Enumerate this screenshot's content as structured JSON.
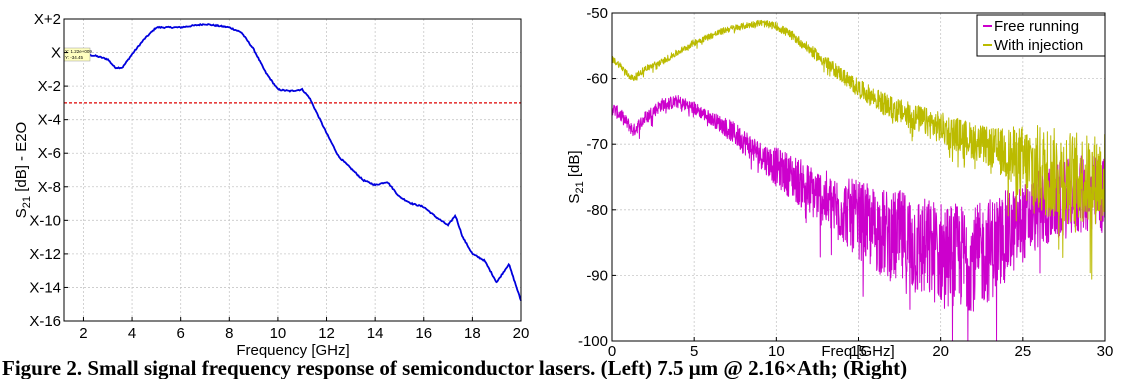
{
  "caption": "Figure 2. Small signal frequency response of semiconductor lasers. (Left) 7.5 μm @ 2.16×Ath; (Right)",
  "charts": [
    {
      "ylabel_main": "S",
      "ylabel_sub": "21",
      "ylabel_rest": " [dB] - E2O",
      "xlabel": "Frequency [GHz]",
      "datatip_line1": "X: 1.22e+009",
      "datatip_line2": "Y: -34.45"
    },
    {
      "ylabel_main": "S",
      "ylabel_sub": "21",
      "ylabel_rest": " [dB]",
      "xlabel": "Freq [GHz]",
      "legend": [
        "Free running",
        "With injection"
      ]
    }
  ],
  "chart_data": [
    {
      "type": "line",
      "xlabel": "Frequency [GHz]",
      "ylabel": "S21 [dB] - E2O",
      "xlim": [
        1.2,
        20
      ],
      "ylim": [
        -16,
        2
      ],
      "x_ticks": [
        2,
        4,
        6,
        8,
        10,
        12,
        14,
        16,
        18,
        20
      ],
      "y_ticks": [
        2,
        0,
        -2,
        -4,
        -6,
        -8,
        -10,
        -12,
        -14,
        -16
      ],
      "y_tick_labels": [
        "X+2",
        "X",
        "X-2",
        "X-4",
        "X-6",
        "X-8",
        "X-10",
        "X-12",
        "X-14",
        "X-16"
      ],
      "grid": true,
      "reference_line_y": -3,
      "series": [
        {
          "color": "#0000dd",
          "x": [
            1.2,
            1.5,
            2.0,
            2.5,
            3.0,
            3.3,
            3.6,
            4.0,
            4.5,
            5.0,
            5.5,
            6.0,
            6.5,
            7.0,
            7.5,
            8.0,
            8.5,
            9.0,
            9.5,
            10.0,
            10.5,
            11.0,
            11.3,
            11.5,
            12.0,
            12.5,
            13.0,
            13.5,
            14.0,
            14.5,
            15.0,
            15.5,
            16.0,
            16.5,
            17.0,
            17.3,
            17.6,
            18.0,
            18.5,
            19.0,
            19.5,
            20.0
          ],
          "y": [
            0,
            0,
            -0.1,
            -0.2,
            -0.4,
            -0.9,
            -0.9,
            -0.1,
            0.8,
            1.5,
            1.5,
            1.5,
            1.6,
            1.7,
            1.6,
            1.5,
            1.2,
            0.2,
            -1.2,
            -2.2,
            -2.3,
            -2.2,
            -2.7,
            -3.3,
            -4.8,
            -6.2,
            -6.9,
            -7.6,
            -7.9,
            -7.7,
            -8.6,
            -9.0,
            -9.2,
            -9.8,
            -10.3,
            -9.7,
            -11.0,
            -12.0,
            -12.4,
            -13.7,
            -12.6,
            -14.8
          ]
        }
      ]
    },
    {
      "type": "line",
      "xlabel": "Freq [GHz]",
      "ylabel": "S21 [dB]",
      "xlim": [
        0,
        30
      ],
      "ylim": [
        -100,
        -50
      ],
      "x_ticks": [
        0,
        5,
        10,
        15,
        20,
        25,
        30
      ],
      "y_ticks": [
        -50,
        -60,
        -70,
        -80,
        -90,
        -100
      ],
      "grid": true,
      "legend_placement": "top-right",
      "series": [
        {
          "name": "Free running",
          "color": "#cc00cc",
          "x": [
            0,
            0.5,
            1.0,
            1.3,
            2.0,
            3.0,
            4.0,
            5.0,
            6.0,
            7.0,
            8.0,
            9.0,
            10.0,
            11.0,
            12.0,
            13.0,
            14.0,
            15.0,
            16.0,
            17.0,
            18.0,
            19.0,
            20.0,
            21.0,
            22.0,
            23.0,
            24.0,
            25.0,
            26.0,
            27.0,
            28.0,
            29.0,
            30.0
          ],
          "y": [
            -64.5,
            -65.5,
            -67.0,
            -68.0,
            -66.0,
            -64.0,
            -63.5,
            -64.5,
            -66.0,
            -67.5,
            -69.5,
            -71.5,
            -73.5,
            -75.0,
            -77.0,
            -78.5,
            -80.0,
            -81.5,
            -83.0,
            -84.0,
            -85.0,
            -86.0,
            -86.5,
            -87.0,
            -87.5,
            -86.0,
            -84.0,
            -82.0,
            -80.0,
            -79.0,
            -78.0,
            -77.5,
            -78.0
          ],
          "noise_band_db": [
            1,
            1,
            1,
            1,
            1,
            1,
            1,
            1,
            1,
            1.5,
            2,
            2,
            3,
            3.5,
            4,
            4.5,
            5,
            6,
            6.5,
            7,
            8,
            8,
            8,
            8,
            8,
            8,
            7,
            6,
            6,
            6,
            6,
            6,
            6
          ]
        },
        {
          "name": "With injection",
          "color": "#bbbb00",
          "x": [
            0,
            0.5,
            1.0,
            1.3,
            2.0,
            3.0,
            4.0,
            5.0,
            6.0,
            7.0,
            8.0,
            9.0,
            10.0,
            11.0,
            12.0,
            13.0,
            14.0,
            15.0,
            16.0,
            17.0,
            18.0,
            19.0,
            20.0,
            21.0,
            22.0,
            23.0,
            24.0,
            25.0,
            26.0,
            27.0,
            28.0,
            29.0,
            30.0
          ],
          "y": [
            -57.0,
            -58.0,
            -59.5,
            -60.0,
            -58.5,
            -57.5,
            -56.0,
            -54.5,
            -53.5,
            -52.5,
            -52.0,
            -51.5,
            -52.0,
            -53.5,
            -55.5,
            -57.5,
            -59.5,
            -61.5,
            -63.0,
            -64.5,
            -65.5,
            -66.5,
            -67.5,
            -68.5,
            -69.5,
            -70.5,
            -71.5,
            -73.0,
            -74.0,
            -74.5,
            -75.0,
            -75.5,
            -75.0
          ],
          "noise_band_db": [
            0.5,
            0.5,
            0.5,
            0.5,
            0.5,
            0.5,
            0.5,
            0.5,
            0.5,
            0.5,
            0.5,
            0.5,
            0.6,
            0.7,
            0.8,
            1.0,
            1.2,
            1.4,
            1.6,
            1.8,
            2.0,
            2.2,
            2.4,
            2.6,
            2.8,
            3.0,
            4,
            6,
            7,
            7,
            7,
            7,
            7
          ]
        }
      ]
    }
  ]
}
